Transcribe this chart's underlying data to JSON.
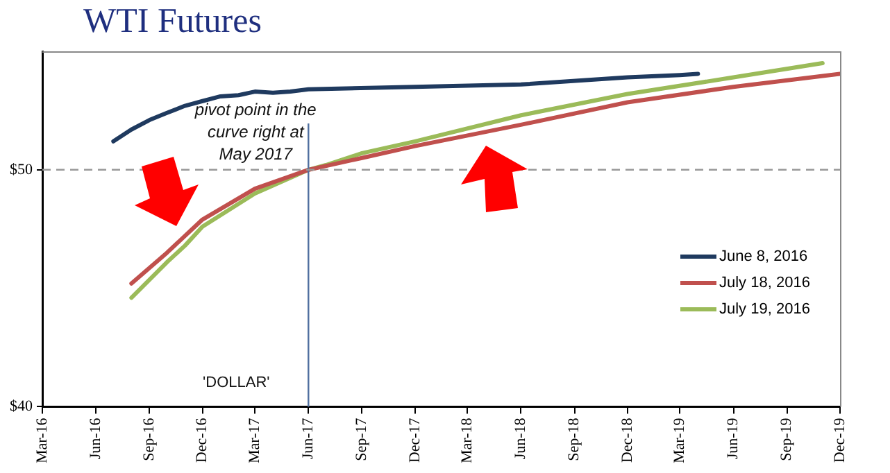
{
  "chart_data": {
    "type": "line",
    "title": "WTI Futures",
    "xlim": [
      "2016-03",
      "2019-12"
    ],
    "xticks": [
      {
        "value": "2016-03",
        "label": "Mar-16"
      },
      {
        "value": "2016-06",
        "label": "Jun-16"
      },
      {
        "value": "2016-09",
        "label": "Sep-16"
      },
      {
        "value": "2016-12",
        "label": "Dec-16"
      },
      {
        "value": "2017-03",
        "label": "Mar-17"
      },
      {
        "value": "2017-06",
        "label": "Jun-17"
      },
      {
        "value": "2017-09",
        "label": "Sep-17"
      },
      {
        "value": "2017-12",
        "label": "Dec-17"
      },
      {
        "value": "2018-03",
        "label": "Mar-18"
      },
      {
        "value": "2018-06",
        "label": "Jun-18"
      },
      {
        "value": "2018-09",
        "label": "Sep-18"
      },
      {
        "value": "2018-12",
        "label": "Dec-18"
      },
      {
        "value": "2019-03",
        "label": "Mar-19"
      },
      {
        "value": "2019-06",
        "label": "Jun-19"
      },
      {
        "value": "2019-09",
        "label": "Sep-19"
      },
      {
        "value": "2019-12",
        "label": "Dec-19"
      }
    ],
    "ylim": [
      40,
      55
    ],
    "yticks": [
      {
        "value": 40,
        "label": "$40"
      },
      {
        "value": 50,
        "label": "$50"
      }
    ],
    "legend": "right",
    "marker": "none",
    "line_style": "solid",
    "series": [
      {
        "name": "June 8, 2016",
        "color": "#1f3a5f",
        "x": [
          "2016-07",
          "2016-08",
          "2016-09",
          "2016-10",
          "2016-11",
          "2016-12",
          "2017-01",
          "2017-02",
          "2017-03",
          "2017-04",
          "2017-05",
          "2017-06",
          "2017-12",
          "2018-06",
          "2018-12",
          "2019-03",
          "2019-04"
        ],
        "values": [
          51.2,
          51.7,
          52.1,
          52.4,
          52.7,
          52.9,
          53.1,
          53.15,
          53.3,
          53.25,
          53.3,
          53.4,
          53.5,
          53.6,
          53.9,
          54.0,
          54.05
        ]
      },
      {
        "name": "July 18, 2016",
        "color": "#c0504d",
        "x": [
          "2016-08",
          "2016-10",
          "2016-12",
          "2017-03",
          "2017-06",
          "2017-09",
          "2017-12",
          "2018-06",
          "2018-12",
          "2019-06",
          "2019-12"
        ],
        "values": [
          45.2,
          46.5,
          47.9,
          49.2,
          50.0,
          50.5,
          51.0,
          51.9,
          52.85,
          53.5,
          54.05
        ]
      },
      {
        "name": "July 19, 2016",
        "color": "#9bbb59",
        "x": [
          "2016-08",
          "2016-10",
          "2016-11",
          "2016-12",
          "2017-03",
          "2017-06",
          "2017-07",
          "2017-09",
          "2017-12",
          "2018-06",
          "2018-12",
          "2019-06",
          "2019-11"
        ],
        "values": [
          44.6,
          46.1,
          46.8,
          47.6,
          49.0,
          50.0,
          50.2,
          50.7,
          51.2,
          52.3,
          53.2,
          53.9,
          54.5
        ]
      }
    ],
    "ref_lines": [
      {
        "axis": "x",
        "value": "2017-06",
        "color": "#4f6f9f"
      },
      {
        "axis": "y",
        "value": 50,
        "color": "#999999",
        "line_style": "dashed"
      }
    ],
    "annotations": [
      "pivot point in the curve right at May 2017",
      "'DOLLAR'"
    ]
  }
}
